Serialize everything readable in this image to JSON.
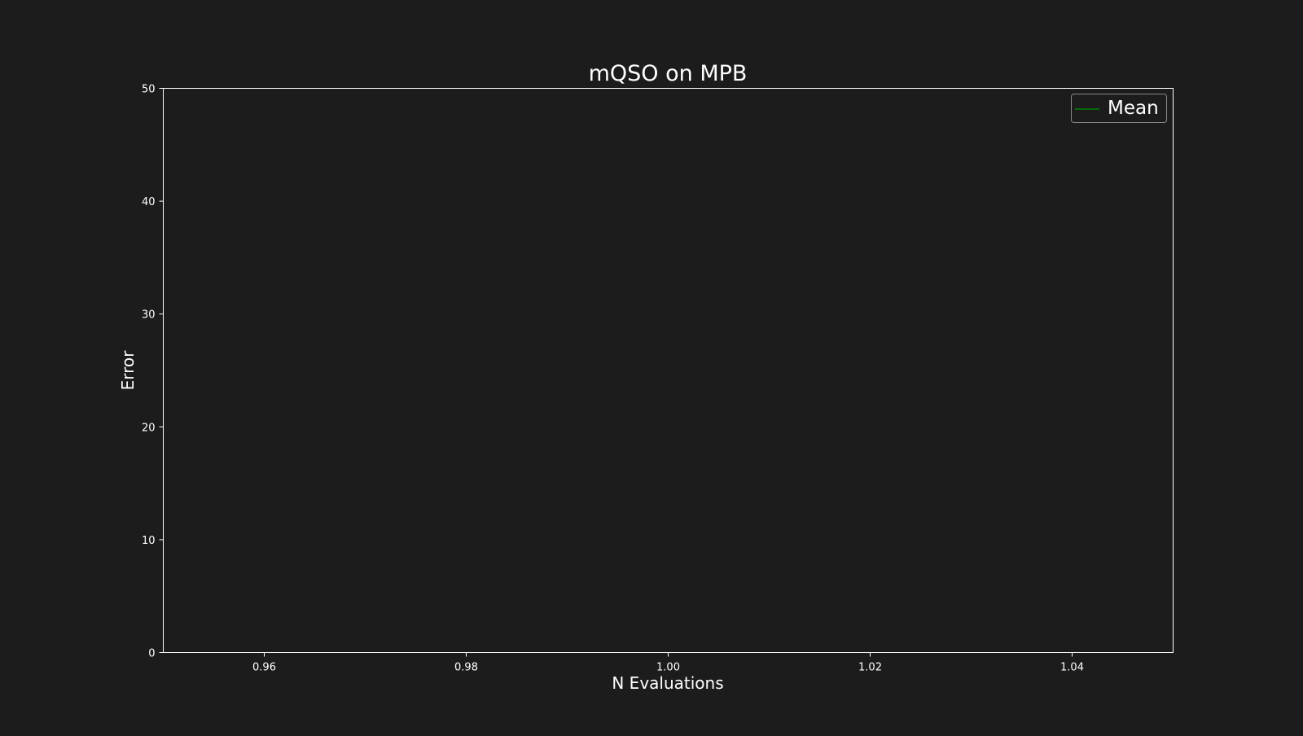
{
  "chart_data": {
    "type": "line",
    "title": "mQSO on MPB",
    "xlabel": "N Evaluations",
    "ylabel": "Error",
    "xlim": [
      0.95,
      1.05
    ],
    "ylim": [
      0,
      50
    ],
    "x_ticks": [
      "0.96",
      "0.98",
      "1.00",
      "1.02",
      "1.04"
    ],
    "y_ticks": [
      "0",
      "10",
      "20",
      "30",
      "40",
      "50"
    ],
    "grid": false,
    "legend_position": "top-right",
    "series": [
      {
        "name": "Mean",
        "color": "#008000",
        "x": [],
        "y": []
      }
    ]
  },
  "colors": {
    "background": "#1c1c1c",
    "axes": "#ffffff",
    "text": "#ffffff",
    "legend_border": "#888888"
  }
}
